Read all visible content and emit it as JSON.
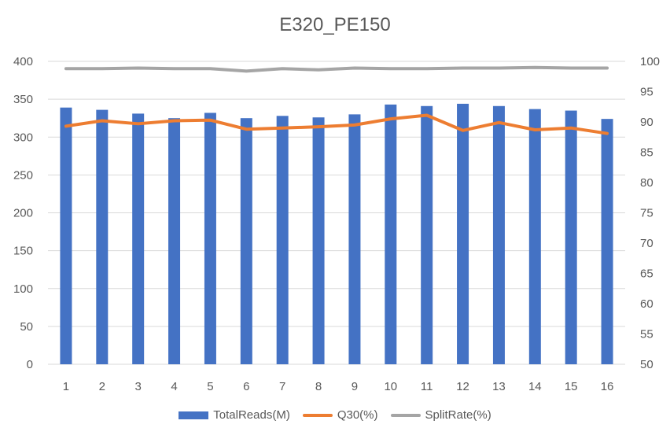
{
  "chart_data": {
    "type": "bar",
    "title": "E320_PE150",
    "categories": [
      "1",
      "2",
      "3",
      "4",
      "5",
      "6",
      "7",
      "8",
      "9",
      "10",
      "11",
      "12",
      "13",
      "14",
      "15",
      "16"
    ],
    "series": [
      {
        "name": "TotalReads(M)",
        "type": "bar",
        "axis": "left",
        "color": "#4472C4",
        "values": [
          339,
          336,
          331,
          325,
          332,
          325,
          328,
          326,
          330,
          343,
          341,
          344,
          341,
          337,
          335,
          324
        ]
      },
      {
        "name": "Q30(%)",
        "type": "line",
        "axis": "right",
        "color": "#ED7D31",
        "values": [
          89.3,
          90.2,
          89.7,
          90.2,
          90.3,
          88.8,
          89.0,
          89.2,
          89.5,
          90.5,
          91.1,
          88.6,
          89.9,
          88.7,
          89.0,
          88.1
        ]
      },
      {
        "name": "SplitRate(%)",
        "type": "line",
        "axis": "right",
        "color": "#A5A5A5",
        "values": [
          98.8,
          98.8,
          98.9,
          98.8,
          98.8,
          98.4,
          98.8,
          98.6,
          98.9,
          98.8,
          98.8,
          98.9,
          98.9,
          99.0,
          98.9,
          98.9
        ]
      }
    ],
    "y_left": {
      "min": 0,
      "max": 400,
      "ticks": [
        "0",
        "50",
        "100",
        "150",
        "200",
        "250",
        "300",
        "350",
        "400"
      ]
    },
    "y_right": {
      "min": 50,
      "max": 100,
      "ticks": [
        "50",
        "55",
        "60",
        "65",
        "70",
        "75",
        "80",
        "85",
        "90",
        "95",
        "100"
      ]
    },
    "gridlines": true,
    "legend_position": "bottom",
    "gridline_color": "#D9D9D9"
  }
}
